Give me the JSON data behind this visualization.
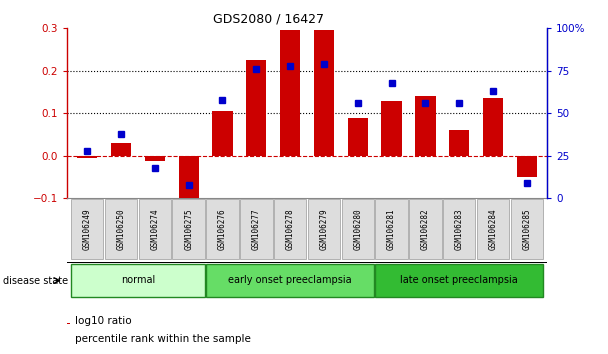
{
  "title": "GDS2080 / 16427",
  "samples": [
    "GSM106249",
    "GSM106250",
    "GSM106274",
    "GSM106275",
    "GSM106276",
    "GSM106277",
    "GSM106278",
    "GSM106279",
    "GSM106280",
    "GSM106281",
    "GSM106282",
    "GSM106283",
    "GSM106284",
    "GSM106285"
  ],
  "log10_ratio": [
    -0.005,
    0.03,
    -0.012,
    -0.13,
    0.105,
    0.225,
    0.295,
    0.295,
    0.09,
    0.13,
    0.14,
    0.06,
    0.135,
    -0.05
  ],
  "percentile_rank_pct": [
    28,
    38,
    18,
    8,
    58,
    76,
    78,
    79,
    56,
    68,
    56,
    56,
    63,
    9
  ],
  "bar_color": "#cc0000",
  "dot_color": "#0000cc",
  "dashed_line_color": "#cc0000",
  "grid_color": "#aaaaaa",
  "left_ylim": [
    -0.1,
    0.3
  ],
  "right_ylim": [
    0,
    100
  ],
  "right_yticks": [
    0,
    25,
    50,
    75,
    100
  ],
  "right_yticklabels": [
    "0",
    "25",
    "50",
    "75",
    "100%"
  ],
  "left_yticks": [
    -0.1,
    0.0,
    0.1,
    0.2,
    0.3
  ],
  "groups": [
    {
      "label": "normal",
      "start": 0,
      "end": 3,
      "color": "#ccffcc"
    },
    {
      "label": "early onset preeclampsia",
      "start": 4,
      "end": 8,
      "color": "#66dd66"
    },
    {
      "label": "late onset preeclampsia",
      "start": 9,
      "end": 13,
      "color": "#33bb33"
    }
  ],
  "disease_state_label": "disease state",
  "legend_bar_label": "log10 ratio",
  "legend_dot_label": "percentile rank within the sample",
  "background_color": "#ffffff"
}
